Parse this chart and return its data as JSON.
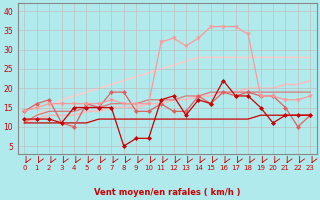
{
  "bg_color": "#b0eaed",
  "grid_color": "#c0c0c0",
  "xlabel": "Vent moyen/en rafales ( km/h )",
  "x_ticks": [
    0,
    1,
    2,
    3,
    4,
    5,
    6,
    7,
    8,
    9,
    10,
    11,
    12,
    13,
    14,
    15,
    16,
    17,
    18,
    19,
    20,
    21,
    22,
    23
  ],
  "ylim": [
    3,
    42
  ],
  "yticks": [
    5,
    10,
    15,
    20,
    25,
    30,
    35,
    40
  ],
  "xlim": [
    -0.5,
    23.5
  ],
  "series": [
    {
      "x": [
        0,
        1,
        2,
        3,
        4,
        5,
        6,
        7,
        8,
        9,
        10,
        11,
        12,
        13,
        14,
        15,
        16,
        17,
        18,
        19,
        20,
        21,
        22,
        23
      ],
      "y": [
        12,
        12,
        12,
        11,
        15,
        15,
        15,
        15,
        5,
        7,
        7,
        17,
        18,
        13,
        17,
        16,
        22,
        18,
        18,
        15,
        11,
        13,
        13,
        13
      ],
      "color": "#cc0000",
      "marker": "D",
      "markersize": 2.0,
      "linewidth": 0.9,
      "zorder": 5
    },
    {
      "x": [
        0,
        1,
        2,
        3,
        4,
        5,
        6,
        7,
        8,
        9,
        10,
        11,
        12,
        13,
        14,
        15,
        16,
        17,
        18,
        19,
        20,
        21,
        22,
        23
      ],
      "y": [
        11,
        11,
        11,
        11,
        11,
        11,
        12,
        12,
        12,
        12,
        12,
        12,
        12,
        12,
        12,
        12,
        12,
        12,
        12,
        13,
        13,
        13,
        13,
        13
      ],
      "color": "#cc0000",
      "marker": null,
      "linewidth": 0.9,
      "zorder": 3
    },
    {
      "x": [
        0,
        1,
        2,
        3,
        4,
        5,
        6,
        7,
        8,
        9,
        10,
        11,
        12,
        13,
        14,
        15,
        16,
        17,
        18,
        19,
        20,
        21,
        22,
        23
      ],
      "y": [
        14,
        16,
        17,
        11,
        10,
        16,
        15,
        19,
        19,
        14,
        14,
        16,
        14,
        14,
        18,
        16,
        19,
        18,
        19,
        18,
        18,
        15,
        10,
        13
      ],
      "color": "#e06060",
      "marker": "D",
      "markersize": 2.0,
      "linewidth": 0.9,
      "zorder": 4
    },
    {
      "x": [
        0,
        1,
        2,
        3,
        4,
        5,
        6,
        7,
        8,
        9,
        10,
        11,
        12,
        13,
        14,
        15,
        16,
        17,
        18,
        19,
        20,
        21,
        22,
        23
      ],
      "y": [
        11,
        13,
        14,
        14,
        14,
        15,
        15,
        16,
        16,
        16,
        17,
        17,
        17,
        18,
        18,
        19,
        19,
        19,
        19,
        19,
        19,
        19,
        19,
        19
      ],
      "color": "#dd7777",
      "marker": null,
      "linewidth": 0.9,
      "zorder": 2
    },
    {
      "x": [
        0,
        1,
        2,
        3,
        4,
        5,
        6,
        7,
        8,
        9,
        10,
        11,
        12,
        13,
        14,
        15,
        16,
        17,
        18,
        19,
        20,
        21,
        22,
        23
      ],
      "y": [
        11,
        12,
        13,
        13,
        13,
        14,
        14,
        15,
        15,
        15,
        16,
        16,
        17,
        17,
        18,
        18,
        19,
        19,
        20,
        20,
        20,
        21,
        21,
        22
      ],
      "color": "#ffbbbb",
      "marker": null,
      "linewidth": 1.2,
      "zorder": 1
    },
    {
      "x": [
        0,
        1,
        2,
        3,
        4,
        5,
        6,
        7,
        8,
        9,
        10,
        11,
        12,
        13,
        14,
        15,
        16,
        17,
        18,
        19,
        20,
        21,
        22,
        23
      ],
      "y": [
        11,
        13,
        15,
        17,
        18,
        19,
        20,
        21,
        22,
        23,
        24,
        25,
        26,
        27,
        28,
        28,
        28,
        28,
        28,
        28,
        28,
        28,
        28,
        28
      ],
      "color": "#ffcccc",
      "marker": null,
      "linewidth": 1.2,
      "zorder": 1
    },
    {
      "x": [
        0,
        1,
        2,
        3,
        4,
        5,
        6,
        7,
        8,
        9,
        10,
        11,
        12,
        13,
        14,
        15,
        16,
        17,
        18,
        19,
        20,
        21,
        22,
        23
      ],
      "y": [
        14,
        15,
        16,
        16,
        16,
        16,
        16,
        17,
        16,
        16,
        16,
        32,
        33,
        31,
        33,
        36,
        36,
        36,
        34,
        18,
        18,
        17,
        17,
        18
      ],
      "color": "#ff9999",
      "marker": "v",
      "markersize": 2.5,
      "linewidth": 0.9,
      "zorder": 4
    }
  ],
  "arrow_color": "#cc0000",
  "spine_color": "#888888"
}
